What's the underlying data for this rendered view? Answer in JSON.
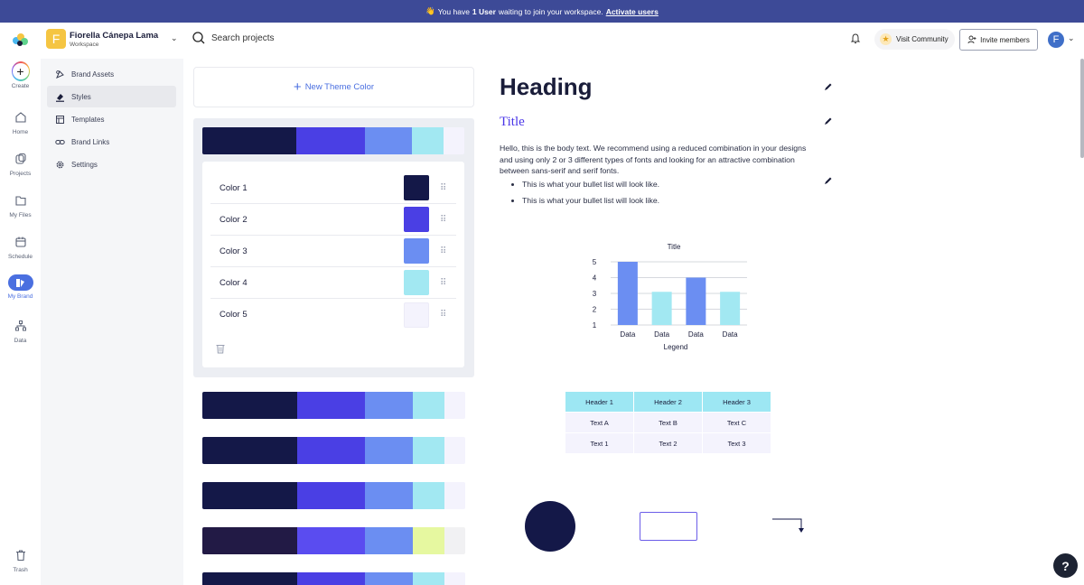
{
  "banner": {
    "prefix": "You have",
    "count_text": "1 User",
    "suffix": "waiting to join your workspace.",
    "link": "Activate users"
  },
  "workspace": {
    "avatar_letter": "F",
    "name": "Fiorella Cánepa Lama",
    "subtitle": "Workspace"
  },
  "search": {
    "placeholder": "Search projects"
  },
  "header": {
    "visit_community": "Visit Community",
    "invite_members": "Invite members",
    "user_letter": "F"
  },
  "rail": {
    "create": "Create",
    "home": "Home",
    "projects": "Projects",
    "my_files": "My Files",
    "schedule": "Schedule",
    "my_brand": "My Brand",
    "data": "Data",
    "trash": "Trash"
  },
  "sidebar": {
    "items": [
      {
        "label": "Brand Assets"
      },
      {
        "label": "Styles"
      },
      {
        "label": "Templates"
      },
      {
        "label": "Brand Links"
      },
      {
        "label": "Settings"
      }
    ]
  },
  "themes": {
    "new_label": "New Theme Color",
    "palettes": [
      [
        "#141848",
        "#4a3fe4",
        "#6b8ef2",
        "#a2e8f2",
        "#f4f3fd"
      ],
      [
        "#141848",
        "#4a3fe4",
        "#6b8ef2",
        "#a2e8f2",
        "#f4f3fd"
      ],
      [
        "#141848",
        "#4a3fe4",
        "#6b8ef2",
        "#a2e8f2",
        "#f4f3fd"
      ],
      [
        "#141848",
        "#4a3fe4",
        "#6b8ef2",
        "#a2e8f2",
        "#f4f3fd"
      ],
      [
        "#221a45",
        "#5a4cf0",
        "#6b8ef2",
        "#e6f8a0",
        "#f1f1f3"
      ],
      [
        "#141848",
        "#4a3fe4",
        "#6b8ef2",
        "#a2e8f2",
        "#f4f3fd"
      ]
    ],
    "colors": [
      {
        "label": "Color 1",
        "hex": "#141848"
      },
      {
        "label": "Color 2",
        "hex": "#4a3fe4"
      },
      {
        "label": "Color 3",
        "hex": "#6b8ef2"
      },
      {
        "label": "Color 4",
        "hex": "#a2e8f2"
      },
      {
        "label": "Color 5",
        "hex": "#f4f3fd"
      }
    ]
  },
  "preview": {
    "heading": "Heading",
    "title": "Title",
    "body": "Hello, this is the body text. We recommend using a reduced combination in your designs and using only 2 or 3 different types of fonts and looking for an attractive combination between sans-serif and serif fonts.",
    "bullets": [
      "This is what your bullet list will look like.",
      "This is what your bullet list will look like."
    ],
    "table": {
      "headers": [
        "Header 1",
        "Header 2",
        "Header 3"
      ],
      "rows": [
        [
          "Text A",
          "Text B",
          "Text C"
        ],
        [
          "Text 1",
          "Text 2",
          "Text 3"
        ]
      ]
    }
  },
  "chart_data": {
    "type": "bar",
    "title": "Title",
    "xlabel": "Legend",
    "categories": [
      "Data",
      "Data",
      "Data",
      "Data"
    ],
    "values": [
      5,
      3.1,
      4,
      3.1
    ],
    "colors": [
      "#6b8ef2",
      "#a2e8f2",
      "#6b8ef2",
      "#a2e8f2"
    ],
    "yticks": [
      1,
      2,
      3,
      4,
      5
    ],
    "ylim": [
      1,
      5
    ]
  },
  "help_label": "?"
}
